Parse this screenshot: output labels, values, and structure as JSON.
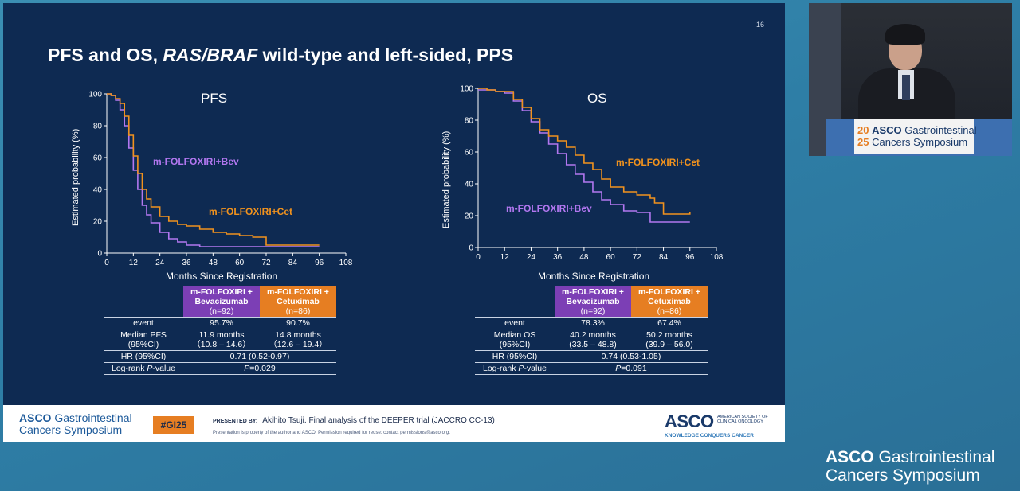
{
  "slide": {
    "number": "16",
    "title_pre": "PFS and OS, ",
    "title_italic1": "RAS",
    "title_slash": "/",
    "title_italic2": "BRAF",
    "title_post": " wild-type and left-sided, PPS"
  },
  "pfs_plot": {
    "title": "PFS",
    "ylabel": "Estimated probability (%)",
    "xlabel": "Months Since Registration",
    "bev_label": "m-FOLFOXIRI+Bev",
    "cet_label": "m-FOLFOXIRI+Cet"
  },
  "os_plot": {
    "title": "OS",
    "ylabel": "Estimated probability (%)",
    "xlabel": "Months Since Registration",
    "bev_label": "m-FOLFOXIRI+Bev",
    "cet_label": "m-FOLFOXIRI+Cet"
  },
  "colors": {
    "bev": "#b277f0",
    "cet": "#f0921e",
    "purple_header": "#7c3fb5",
    "orange_header": "#e67e22"
  },
  "chart_data": [
    {
      "type": "line",
      "title": "PFS",
      "xlabel": "Months Since Registration",
      "ylabel": "Estimated probability (%)",
      "xlim": [
        0,
        108
      ],
      "ylim": [
        0,
        100
      ],
      "xticks": [
        0,
        12,
        24,
        36,
        48,
        60,
        72,
        84,
        96,
        108
      ],
      "yticks": [
        0,
        20,
        40,
        60,
        80,
        100
      ],
      "series": [
        {
          "name": "m-FOLFOXIRI+Bev",
          "x": [
            0,
            2,
            4,
            6,
            8,
            10,
            12,
            14,
            16,
            18,
            20,
            24,
            28,
            32,
            36,
            42,
            48,
            60,
            72,
            84,
            96
          ],
          "y": [
            100,
            99,
            96,
            90,
            80,
            66,
            52,
            40,
            30,
            24,
            19,
            13,
            9,
            7,
            5,
            4,
            4,
            4,
            4,
            4,
            4
          ]
        },
        {
          "name": "m-FOLFOXIRI+Cet",
          "x": [
            0,
            2,
            4,
            6,
            8,
            10,
            12,
            14,
            16,
            18,
            20,
            24,
            28,
            32,
            36,
            42,
            48,
            54,
            60,
            66,
            72,
            84,
            96
          ],
          "y": [
            100,
            99,
            97,
            94,
            86,
            74,
            61,
            50,
            40,
            34,
            29,
            23,
            20,
            18,
            17,
            15,
            13,
            12,
            11,
            10,
            5,
            5,
            5
          ]
        }
      ]
    },
    {
      "type": "line",
      "title": "OS",
      "xlabel": "Months Since Registration",
      "ylabel": "Estimated probability (%)",
      "xlim": [
        0,
        108
      ],
      "ylim": [
        0,
        100
      ],
      "xticks": [
        0,
        12,
        24,
        36,
        48,
        60,
        72,
        84,
        96,
        108
      ],
      "yticks": [
        0,
        20,
        40,
        60,
        80,
        100
      ],
      "series": [
        {
          "name": "m-FOLFOXIRI+Bev",
          "x": [
            0,
            4,
            8,
            12,
            16,
            20,
            24,
            28,
            32,
            36,
            40,
            44,
            48,
            52,
            56,
            60,
            66,
            72,
            78,
            84,
            90,
            96
          ],
          "y": [
            99,
            99,
            98,
            97,
            92,
            86,
            79,
            72,
            65,
            59,
            52,
            46,
            41,
            35,
            30,
            27,
            23,
            22,
            16,
            16,
            16,
            16
          ]
        },
        {
          "name": "m-FOLFOXIRI+Cet",
          "x": [
            0,
            4,
            8,
            12,
            16,
            20,
            24,
            28,
            32,
            36,
            40,
            44,
            48,
            52,
            56,
            60,
            66,
            72,
            78,
            80,
            84,
            90,
            96
          ],
          "y": [
            100,
            99,
            98,
            98,
            93,
            88,
            81,
            74,
            70,
            67,
            63,
            58,
            53,
            49,
            43,
            38,
            35,
            33,
            31,
            28,
            21,
            21,
            22
          ]
        }
      ]
    }
  ],
  "pfs_table": {
    "col1": {
      "line1": "m-FOLFOXIRI +",
      "line2": "Bevacizumab",
      "n": "(n=92)"
    },
    "col2": {
      "line1": "m-FOLFOXIRI +",
      "line2": "Cetuximab",
      "n": "(n=86)"
    },
    "event": {
      "label": "event",
      "v1": "95.7%",
      "v2": "90.7%"
    },
    "median": {
      "label1": "Median PFS",
      "label2": "(95%CI)",
      "v1a": "11.9 months",
      "v1b": "（10.8 – 14.6）",
      "v2a": "14.8 months",
      "v2b": "（12.6 – 19.4）"
    },
    "hr": {
      "label": "HR (95%CI)",
      "value": "0.71 (0.52-0.97)"
    },
    "logrank": {
      "label_pre": "Log-rank ",
      "label_it": "P",
      "label_post": "-value",
      "value_it": "P",
      "value": "=0.029"
    }
  },
  "os_table": {
    "col1": {
      "line1": "m-FOLFOXIRI +",
      "line2": "Bevacizumab",
      "n": "(n=92)"
    },
    "col2": {
      "line1": "m-FOLFOXIRI +",
      "line2": "Cetuximab",
      "n": "(n=86)"
    },
    "event": {
      "label": "event",
      "v1": "78.3%",
      "v2": "67.4%"
    },
    "median": {
      "label1": "Median OS",
      "label2": "(95%CI)",
      "v1a": "40.2 months",
      "v1b": "(33.5 – 48.8)",
      "v2a": "50.2 months",
      "v2b": "(39.9 – 56.0)"
    },
    "hr": {
      "label": "HR (95%CI)",
      "value": "0.74 (0.53-1.05)"
    },
    "logrank": {
      "label_pre": "Log-rank ",
      "label_it": "P",
      "label_post": "-value",
      "value_it": "P",
      "value": "=0.091"
    }
  },
  "footer": {
    "brand_asco": "ASCO",
    "brand_line1": " Gastrointestinal",
    "brand_line2": "Cancers Symposium",
    "hashtag": "#GI25",
    "presented_by": "PRESENTED BY:",
    "presenter": "Akihito Tsuji. Final analysis of the DEEPER trial (JACCRO CC-13)",
    "disclaimer": "Presentation is property of the author and ASCO. Permission required for reuse; contact permissions@asco.org.",
    "logo": "ASCO",
    "logo_small1": "AMERICAN SOCIETY OF",
    "logo_small2": "CLINICAL ONCOLOGY",
    "logo_tag": "KNOWLEDGE CONQUERS CANCER"
  },
  "speaker_sign": {
    "yr1": "20",
    "yr2": "25",
    "asco": "ASCO",
    "line1": " Gastrointestinal",
    "line2": "Cancers Symposium"
  },
  "corner_brand": {
    "asco": "ASCO",
    "line1": " Gastrointestinal",
    "line2": "Cancers Symposium"
  }
}
